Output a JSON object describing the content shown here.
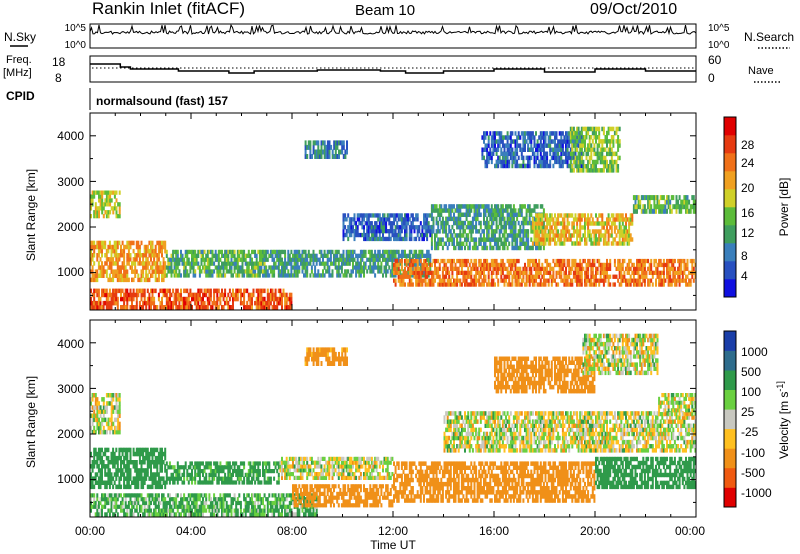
{
  "header": {
    "station": "Rankin Inlet (fitACF)",
    "beam": "Beam 10",
    "date": "09/Oct/2010"
  },
  "noise_panel": {
    "left_label": "N.Sky",
    "right_label": "N.Search",
    "ticks_left": [
      "10^5",
      "10^0"
    ],
    "ticks_right": [
      "10^5",
      "10^0"
    ]
  },
  "freq_panel": {
    "left_label_line1": "Freq.",
    "left_label_line2": "[MHz]",
    "right_label": "Nave",
    "ticks_left": [
      "18",
      "8"
    ],
    "ticks_right": [
      "60",
      "0"
    ]
  },
  "cpid": {
    "label": "CPID",
    "value": "normalsound (fast) 157"
  },
  "x_axis": {
    "title": "Time UT",
    "ticks": [
      "00:00",
      "04:00",
      "08:00",
      "12:00",
      "16:00",
      "20:00",
      "00:00"
    ]
  },
  "chart_data": [
    {
      "type": "heatmap",
      "panel": "power",
      "xlabel": "Time UT",
      "ylabel": "Slant Range [km]",
      "xlim": [
        0,
        24
      ],
      "ylim": [
        180,
        4500
      ],
      "yticks": [
        "1000",
        "2000",
        "3000",
        "4000"
      ],
      "colorbar": {
        "label": "Power [dB]",
        "ticks": [
          "4",
          "8",
          "12",
          "16",
          "20",
          "24",
          "28"
        ],
        "colors": [
          "#1010e0",
          "#2850c0",
          "#3a7fbc",
          "#3f9e5e",
          "#5cbc3a",
          "#cfd028",
          "#f0a020",
          "#f07018",
          "#e63a10",
          "#e00000"
        ]
      },
      "regions": [
        {
          "t0": 0.0,
          "t1": 8.0,
          "r0": 200,
          "r1": 650,
          "v": 26
        },
        {
          "t0": 0.0,
          "t1": 3.0,
          "r0": 800,
          "r1": 1700,
          "v": 22
        },
        {
          "t0": 3.0,
          "t1": 7.0,
          "r0": 900,
          "r1": 1500,
          "v": 14
        },
        {
          "t0": 7.0,
          "t1": 13.5,
          "r0": 900,
          "r1": 1500,
          "v": 12
        },
        {
          "t0": 8.5,
          "t1": 10.2,
          "r0": 3500,
          "r1": 3900,
          "v": 10
        },
        {
          "t0": 0.0,
          "t1": 1.2,
          "r0": 2200,
          "r1": 2800,
          "v": 18
        },
        {
          "t0": 12.0,
          "t1": 24.0,
          "r0": 700,
          "r1": 1300,
          "v": 24
        },
        {
          "t0": 13.5,
          "t1": 18.0,
          "r0": 1500,
          "r1": 2500,
          "v": 12
        },
        {
          "t0": 17.5,
          "t1": 21.5,
          "r0": 1600,
          "r1": 2300,
          "v": 20
        },
        {
          "t0": 21.5,
          "t1": 24.0,
          "r0": 2300,
          "r1": 2700,
          "v": 14
        },
        {
          "t0": 15.5,
          "t1": 19.5,
          "r0": 3300,
          "r1": 4100,
          "v": 8
        },
        {
          "t0": 10.0,
          "t1": 13.5,
          "r0": 1700,
          "r1": 2300,
          "v": 8
        },
        {
          "t0": 19.0,
          "t1": 21.0,
          "r0": 3200,
          "r1": 4200,
          "v": 16
        }
      ]
    },
    {
      "type": "heatmap",
      "panel": "velocity",
      "xlabel": "Time UT",
      "ylabel": "Slant Range [km]",
      "xlim": [
        0,
        24
      ],
      "ylim": [
        180,
        4500
      ],
      "yticks": [
        "1000",
        "2000",
        "3000",
        "4000"
      ],
      "colorbar": {
        "label": "Velocity [m s^-1]",
        "ticks": [
          "1000",
          "500",
          "100",
          "25",
          "-25",
          "-100",
          "-500",
          "-1000"
        ],
        "colors": [
          "#1a3ea8",
          "#2e6c8c",
          "#2f9a4a",
          "#6ad040",
          "#c8c8c0",
          "#ffc020",
          "#f09018",
          "#f05a10",
          "#e00000"
        ]
      },
      "regions": [
        {
          "t0": 0.0,
          "t1": 9.0,
          "r0": 200,
          "r1": 700,
          "v": 120
        },
        {
          "t0": 0.0,
          "t1": 3.0,
          "r0": 800,
          "r1": 1700,
          "v": 300
        },
        {
          "t0": 3.0,
          "t1": 7.5,
          "r0": 900,
          "r1": 1400,
          "v": 200
        },
        {
          "t0": 7.5,
          "t1": 12.0,
          "r0": 1000,
          "r1": 1500,
          "v": 0
        },
        {
          "t0": 8.0,
          "t1": 12.0,
          "r0": 400,
          "r1": 900,
          "v": -300
        },
        {
          "t0": 8.5,
          "t1": 10.2,
          "r0": 3500,
          "r1": 3900,
          "v": -200
        },
        {
          "t0": 0.0,
          "t1": 1.2,
          "r0": 2000,
          "r1": 2900,
          "v": 0
        },
        {
          "t0": 12.0,
          "t1": 20.0,
          "r0": 500,
          "r1": 1400,
          "v": -300
        },
        {
          "t0": 20.0,
          "t1": 24.0,
          "r0": 800,
          "r1": 1500,
          "v": 300
        },
        {
          "t0": 14.0,
          "t1": 24.0,
          "r0": 1600,
          "r1": 2500,
          "v": 0
        },
        {
          "t0": 22.5,
          "t1": 24.0,
          "r0": 2400,
          "r1": 2900,
          "v": 0
        },
        {
          "t0": 16.0,
          "t1": 20.0,
          "r0": 2900,
          "r1": 3700,
          "v": -300
        },
        {
          "t0": 19.5,
          "t1": 22.5,
          "r0": 3300,
          "r1": 4200,
          "v": 0
        }
      ]
    }
  ]
}
